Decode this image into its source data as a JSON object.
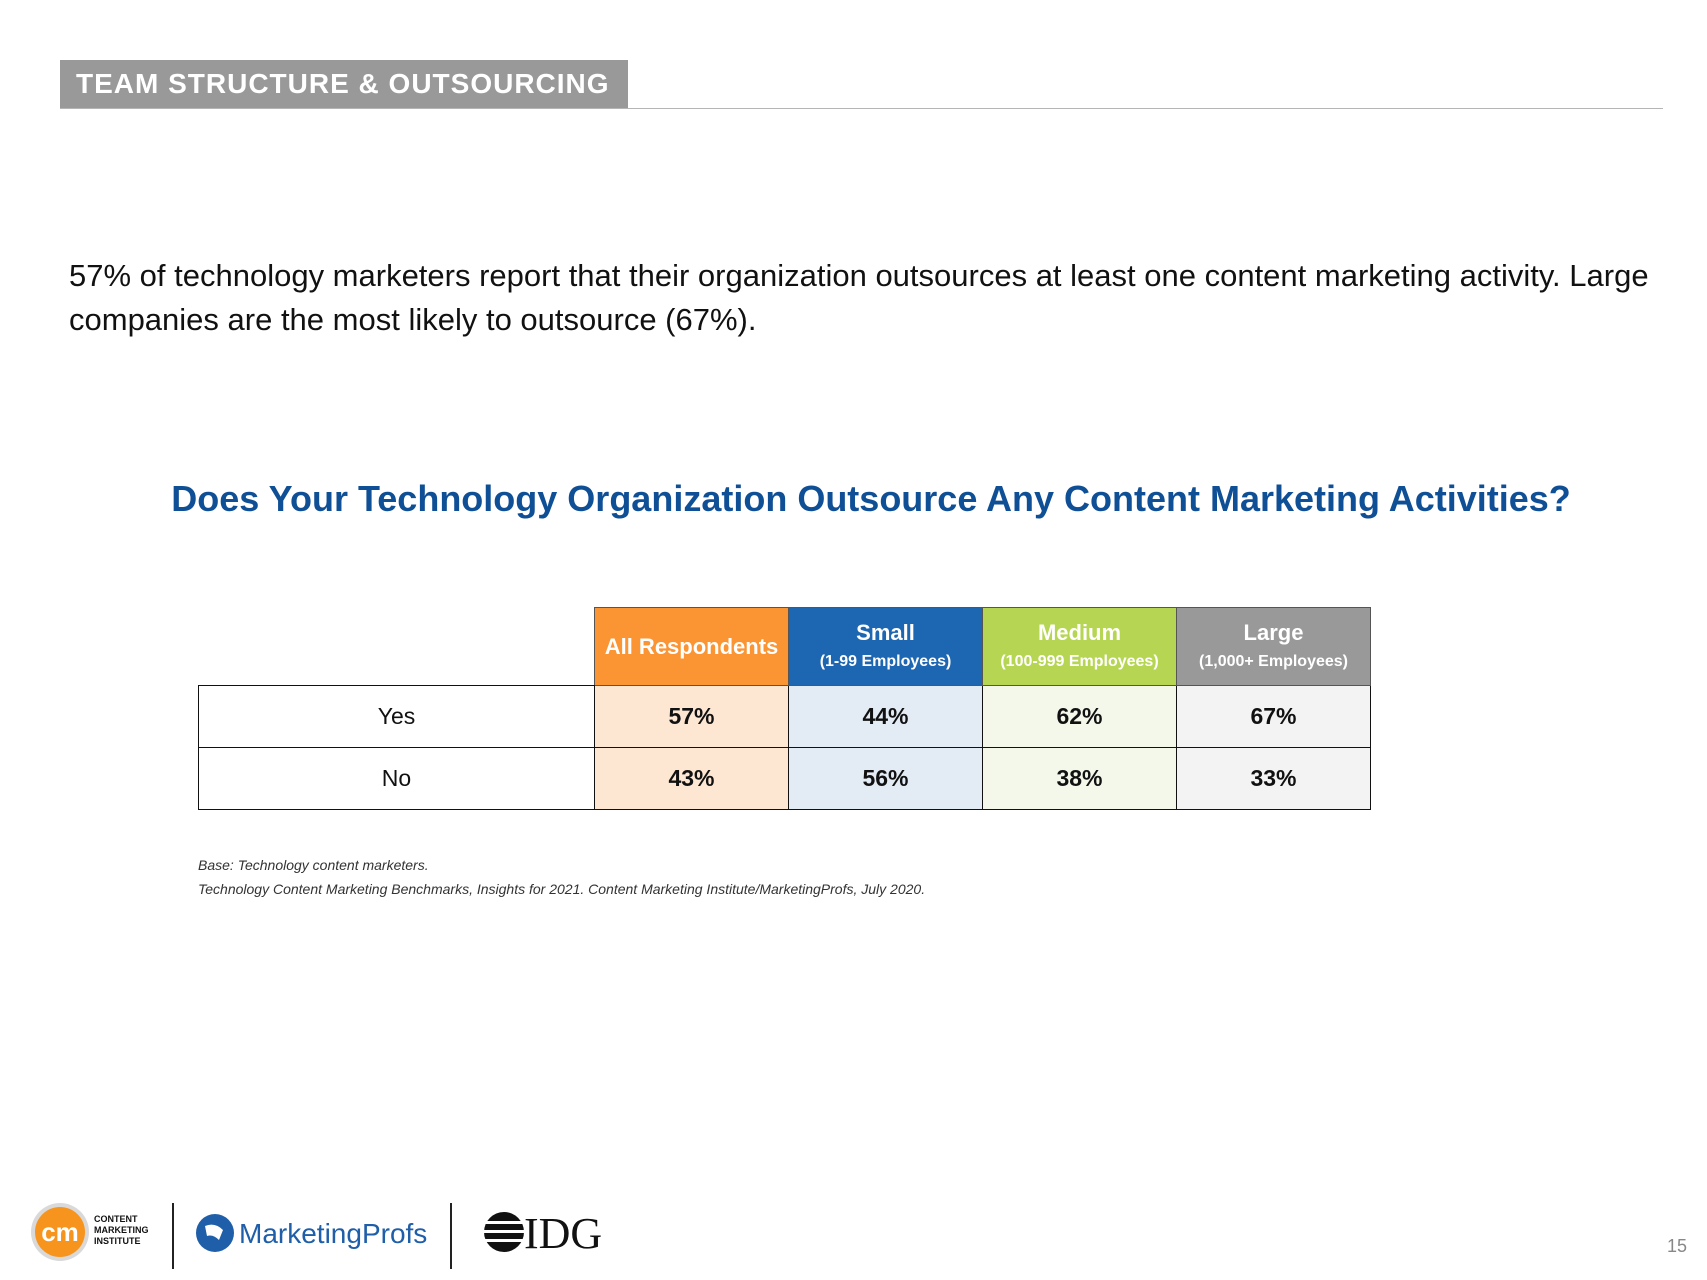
{
  "header": {
    "section_title": "TEAM STRUCTURE & OUTSOURCING"
  },
  "intro_text": "57% of technology marketers report that their organization outsources at least one content marketing activity. Large companies are the most likely to outsource (67%).",
  "chart_data": {
    "type": "table",
    "title": "Does Your Technology Organization Outsource Any Content Marketing Activities?",
    "columns": [
      {
        "name": "All Respondents",
        "sub": "",
        "header_color": "#fb9433",
        "cell_color": "#fde6d2"
      },
      {
        "name": "Small",
        "sub": "(1-99 Employees)",
        "header_color": "#1d66b2",
        "cell_color": "#e3ebf5"
      },
      {
        "name": "Medium",
        "sub": "(100-999 Employees)",
        "header_color": "#b6d653",
        "cell_color": "#f3f8eb"
      },
      {
        "name": "Large",
        "sub": "(1,000+ Employees)",
        "header_color": "#999999",
        "cell_color": "#f3f3f3"
      }
    ],
    "rows": [
      {
        "label": "Yes",
        "values": [
          "57%",
          "44%",
          "62%",
          "67%"
        ]
      },
      {
        "label": "No",
        "values": [
          "43%",
          "56%",
          "38%",
          "33%"
        ]
      }
    ]
  },
  "notes": {
    "base": "Base: Technology content marketers.",
    "source": "Technology Content Marketing Benchmarks, Insights for 2021. Content Marketing Institute/MarketingProfs, July 2020."
  },
  "footer": {
    "logos": {
      "cmi_initials": "cm",
      "cmi_text_1": "CONTENT",
      "cmi_text_2": "MARKETING",
      "cmi_text_3": "INSTITUTE",
      "marketingprofs": "MarketingProfs",
      "idg": "IDG"
    },
    "page_number": "15"
  },
  "colors": {
    "title_blue": "#0f4f96",
    "banner_gray": "#999999"
  }
}
